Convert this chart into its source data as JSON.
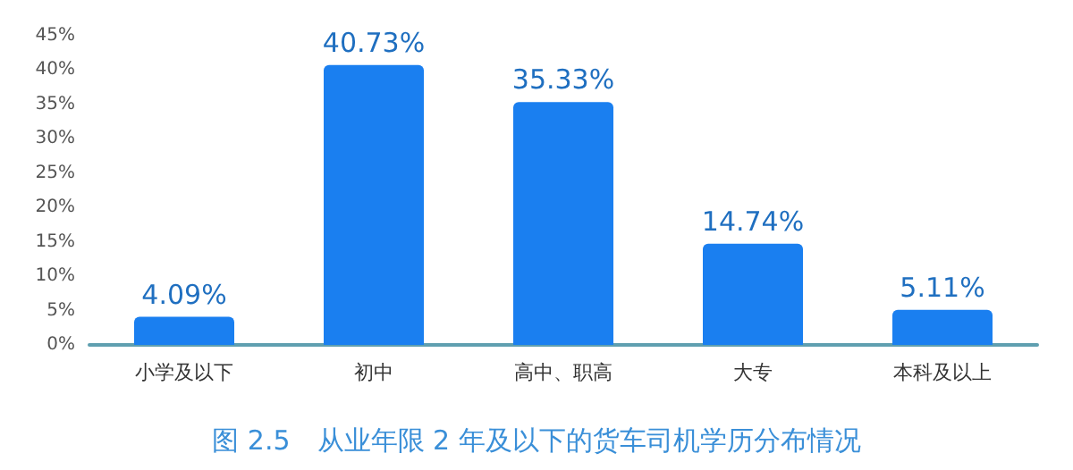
{
  "chart_data": {
    "type": "bar",
    "title": "图 2.5　从业年限 2 年及以下的货车司机学历分布情况",
    "categories": [
      "小学及以下",
      "初中",
      "高中、职高",
      "大专",
      "本科及以上"
    ],
    "values": [
      4.09,
      40.73,
      35.33,
      14.74,
      5.11
    ],
    "value_labels": [
      "4.09%",
      "40.73%",
      "35.33%",
      "14.74%",
      "5.11%"
    ],
    "color": "#1a7ff0",
    "ylim": [
      0,
      45
    ],
    "yticks": [
      {
        "value": 0,
        "label": "0%"
      },
      {
        "value": 5,
        "label": "5%"
      },
      {
        "value": 10,
        "label": "10%"
      },
      {
        "value": 15,
        "label": "15%"
      },
      {
        "value": 20,
        "label": "20%"
      },
      {
        "value": 25,
        "label": "25%"
      },
      {
        "value": 30,
        "label": "30%"
      },
      {
        "value": 35,
        "label": "35%"
      },
      {
        "value": 40,
        "label": "40%"
      },
      {
        "value": 45,
        "label": "45%"
      }
    ],
    "grid": false
  }
}
